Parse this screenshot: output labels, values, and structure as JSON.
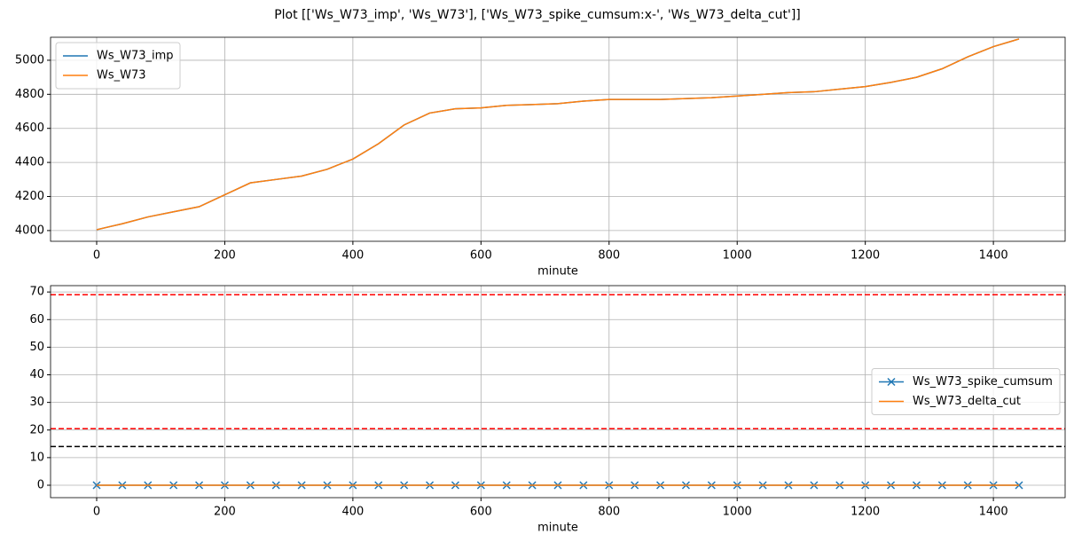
{
  "title": "Plot [['Ws_W73_imp', 'Ws_W73'], ['Ws_W73_spike_cumsum:x-', 'Ws_W73_delta_cut']]",
  "chart_data": [
    {
      "type": "line",
      "x_label": "minute",
      "x": [
        0,
        40,
        80,
        120,
        160,
        200,
        240,
        280,
        320,
        360,
        400,
        440,
        480,
        520,
        560,
        600,
        640,
        680,
        720,
        760,
        800,
        840,
        880,
        920,
        960,
        1000,
        1040,
        1080,
        1120,
        1160,
        1200,
        1240,
        1280,
        1320,
        1360,
        1400,
        1440
      ],
      "series": [
        {
          "name": "Ws_W73_imp",
          "color": "#1f77b4",
          "values": [
            4005,
            4040,
            4080,
            4110,
            4140,
            4210,
            4280,
            4300,
            4320,
            4360,
            4420,
            4510,
            4620,
            4690,
            4715,
            4720,
            4735,
            4740,
            4745,
            4760,
            4770,
            4770,
            4770,
            4775,
            4780,
            4790,
            4800,
            4810,
            4815,
            4830,
            4845,
            4870,
            4900,
            4950,
            5020,
            5080,
            5125
          ]
        },
        {
          "name": "Ws_W73",
          "color": "#ff7f0e",
          "values": [
            4005,
            4040,
            4080,
            4110,
            4140,
            4210,
            4280,
            4300,
            4320,
            4360,
            4420,
            4510,
            4620,
            4690,
            4715,
            4720,
            4735,
            4740,
            4745,
            4760,
            4770,
            4770,
            4770,
            4775,
            4780,
            4790,
            4800,
            4810,
            4815,
            4830,
            4845,
            4870,
            4900,
            4950,
            5020,
            5080,
            5125
          ]
        }
      ],
      "xlim": [
        -72,
        1512
      ],
      "xticks": [
        0,
        200,
        400,
        600,
        800,
        1000,
        1200,
        1400
      ],
      "ylim": [
        3937,
        5135
      ],
      "yticks": [
        4000,
        4200,
        4400,
        4600,
        4800,
        5000
      ],
      "grid": true,
      "legend": "upper left"
    },
    {
      "type": "line",
      "x_label": "minute",
      "x": [
        0,
        40,
        80,
        120,
        160,
        200,
        240,
        280,
        320,
        360,
        400,
        440,
        480,
        520,
        560,
        600,
        640,
        680,
        720,
        760,
        800,
        840,
        880,
        920,
        960,
        1000,
        1040,
        1080,
        1120,
        1160,
        1200,
        1240,
        1280,
        1320,
        1360,
        1400,
        1440
      ],
      "series": [
        {
          "name": "Ws_W73_spike_cumsum",
          "color": "#1f77b4",
          "marker": "x",
          "values": [
            0,
            0,
            0,
            0,
            0,
            0,
            0,
            0,
            0,
            0,
            0,
            0,
            0,
            0,
            0,
            0,
            0,
            0,
            0,
            0,
            0,
            0,
            0,
            0,
            0,
            0,
            0,
            0,
            0,
            0,
            0,
            0,
            0,
            0,
            0,
            0,
            0
          ]
        },
        {
          "name": "Ws_W73_delta_cut",
          "color": "#ff7f0e",
          "values": [
            0,
            0,
            0,
            0,
            0,
            0,
            0,
            0,
            0,
            0,
            0,
            0,
            0,
            0,
            0,
            0,
            0,
            0,
            0,
            0,
            0,
            0,
            0,
            0,
            0,
            0,
            0,
            0,
            0,
            0,
            0,
            0,
            0,
            0,
            0,
            0,
            0
          ]
        }
      ],
      "hlines": [
        {
          "value": 69,
          "color": "#ff0000"
        },
        {
          "value": 20.5,
          "color": "#ff0000"
        },
        {
          "value": 14,
          "color": "#000000"
        }
      ],
      "xlim": [
        -72,
        1512
      ],
      "xticks": [
        0,
        200,
        400,
        600,
        800,
        1000,
        1200,
        1400
      ],
      "ylim": [
        -4.5,
        72.3
      ],
      "yticks": [
        0,
        10,
        20,
        30,
        40,
        50,
        60,
        70
      ],
      "grid": true,
      "legend": "center right"
    }
  ]
}
